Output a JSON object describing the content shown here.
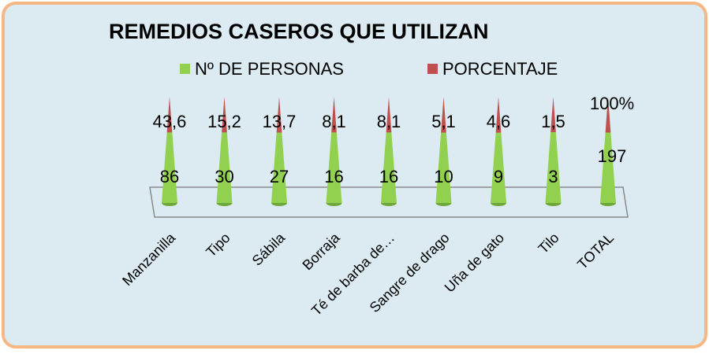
{
  "chart_data": {
    "type": "cone",
    "stacking": "percent",
    "title": "REMEDIOS CASEROS QUE UTILIZAN",
    "categories": [
      "Manzanilla",
      "Tipo",
      "Sábila",
      "Borraja",
      "Té de barba de…",
      "Sangre de drago",
      "Uña de gato",
      "Tilo",
      "TOTAL"
    ],
    "series": [
      {
        "name": "Nº DE PERSONAS",
        "color": "#92d050",
        "values": [
          86,
          30,
          27,
          16,
          16,
          10,
          9,
          3,
          197
        ]
      },
      {
        "name": "PORCENTAJE",
        "color": "#c0504d",
        "values": [
          43.6,
          15.2,
          13.7,
          8.1,
          8.1,
          5.1,
          4.6,
          1.5,
          100
        ],
        "value_labels": [
          "43,6",
          "15,2",
          "13,7",
          "8,1",
          "8,1",
          "5,1",
          "4,6",
          "1,5",
          "100%"
        ]
      }
    ]
  }
}
